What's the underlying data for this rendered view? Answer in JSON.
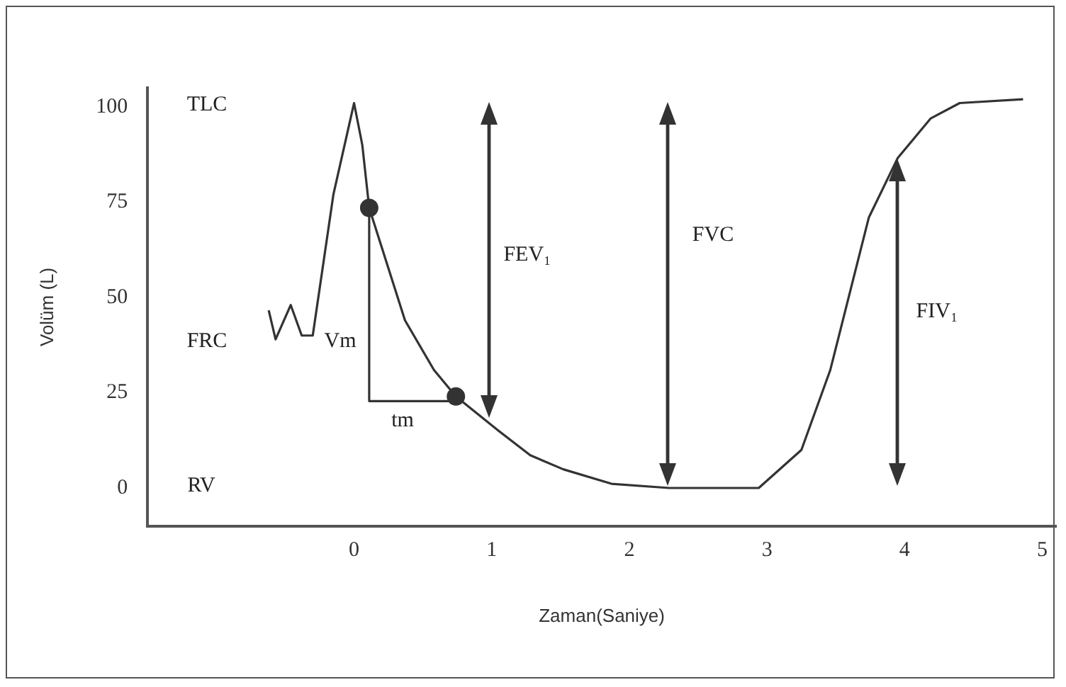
{
  "chart_data": {
    "type": "line",
    "xlabel": "Zaman(Saniye)",
    "ylabel": "Volüm (L)",
    "xlim": [
      -1.5,
      5.1
    ],
    "ylim": [
      -10,
      105
    ],
    "xticks": [
      0,
      1,
      2,
      3,
      4,
      5
    ],
    "yticks": [
      0,
      25,
      50,
      75,
      100
    ],
    "grid": false,
    "legend": false,
    "series": [
      {
        "color": "#333333",
        "marker": "none",
        "x": [
          -0.62,
          -0.57,
          -0.46,
          -0.38,
          -0.3,
          -0.15,
          0,
          0.06,
          0.11,
          0.37,
          0.58,
          0.74,
          1.05,
          1.28,
          1.52,
          1.87,
          2.29,
          2.94,
          3.25,
          3.46,
          3.74,
          3.95,
          4.19,
          4.4,
          4.86
        ],
        "values": [
          46.6,
          39,
          48,
          40,
          40,
          77,
          101,
          90,
          73.5,
          44,
          31,
          24,
          15,
          8.6,
          4.9,
          1.1,
          0,
          0,
          10,
          31,
          71,
          86.6,
          97,
          101,
          102
        ]
      },
      {
        "color": "#333333",
        "marker": "none",
        "x": [
          0.11,
          0.11,
          0.74
        ],
        "values": [
          73.5,
          22.8,
          22.8
        ]
      },
      {
        "type": "scatter",
        "color": "#333333",
        "marker": "circle",
        "x": [
          0.11,
          0.74
        ],
        "values": [
          73.5,
          24
        ]
      }
    ],
    "annotations": [
      "TLC",
      "FRC",
      "RV",
      "Vm",
      "tm",
      "FEV₁",
      "FVC",
      "FIV₁"
    ]
  }
}
